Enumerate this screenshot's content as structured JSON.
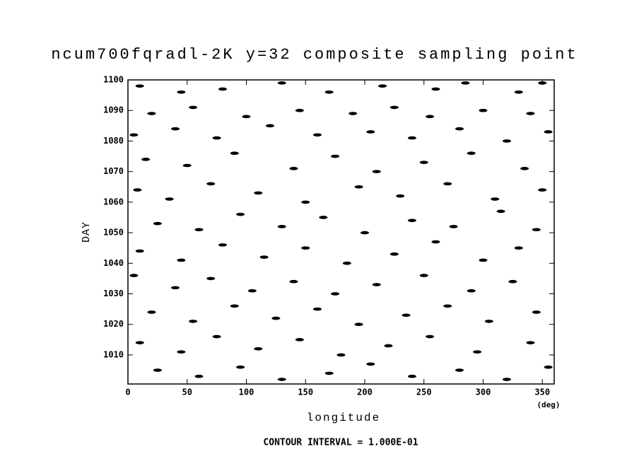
{
  "chart_data": {
    "type": "scatter",
    "title": "ncum700fqradl-2K y=32 composite sampling point",
    "xlabel": "longitude",
    "xunit": "(deg)",
    "ylabel": "DAY",
    "footer": "CONTOUR INTERVAL = 1.000E-01",
    "color": "#000000",
    "xlim": [
      0,
      360
    ],
    "ylim": [
      1000.5,
      1100
    ],
    "xticks": [
      0,
      50,
      100,
      150,
      200,
      250,
      300,
      350
    ],
    "yticks": [
      1010,
      1020,
      1030,
      1040,
      1050,
      1060,
      1070,
      1080,
      1090,
      1100
    ],
    "x": [
      10,
      45,
      80,
      130,
      170,
      215,
      260,
      285,
      330,
      350,
      20,
      55,
      100,
      145,
      190,
      225,
      255,
      300,
      340,
      5,
      40,
      75,
      120,
      160,
      205,
      240,
      280,
      320,
      355,
      15,
      50,
      90,
      140,
      175,
      210,
      250,
      290,
      335,
      8,
      35,
      70,
      110,
      150,
      195,
      230,
      270,
      310,
      350,
      25,
      60,
      95,
      130,
      165,
      200,
      240,
      275,
      315,
      345,
      10,
      45,
      80,
      115,
      150,
      185,
      225,
      260,
      300,
      330,
      5,
      40,
      70,
      105,
      140,
      175,
      210,
      250,
      290,
      325,
      20,
      55,
      90,
      125,
      160,
      195,
      235,
      270,
      305,
      345,
      10,
      45,
      75,
      110,
      145,
      180,
      220,
      255,
      295,
      340,
      25,
      60,
      95,
      130,
      170,
      205,
      240,
      280,
      320,
      355
    ],
    "values": [
      1098,
      1096,
      1097,
      1099,
      1096,
      1098,
      1097,
      1099,
      1096,
      1099,
      1089,
      1091,
      1088,
      1090,
      1089,
      1091,
      1088,
      1090,
      1089,
      1082,
      1084,
      1081,
      1085,
      1082,
      1083,
      1081,
      1084,
      1080,
      1083,
      1074,
      1072,
      1076,
      1071,
      1075,
      1070,
      1073,
      1076,
      1071,
      1064,
      1061,
      1066,
      1063,
      1060,
      1065,
      1062,
      1066,
      1061,
      1064,
      1053,
      1051,
      1056,
      1052,
      1055,
      1050,
      1054,
      1052,
      1057,
      1051,
      1044,
      1041,
      1046,
      1042,
      1045,
      1040,
      1043,
      1047,
      1041,
      1045,
      1036,
      1032,
      1035,
      1031,
      1034,
      1030,
      1033,
      1036,
      1031,
      1034,
      1024,
      1021,
      1026,
      1022,
      1025,
      1020,
      1023,
      1026,
      1021,
      1024,
      1014,
      1011,
      1016,
      1012,
      1015,
      1010,
      1013,
      1016,
      1011,
      1014,
      1005,
      1003,
      1006,
      1002,
      1004,
      1007,
      1003,
      1005,
      1002,
      1006
    ]
  }
}
